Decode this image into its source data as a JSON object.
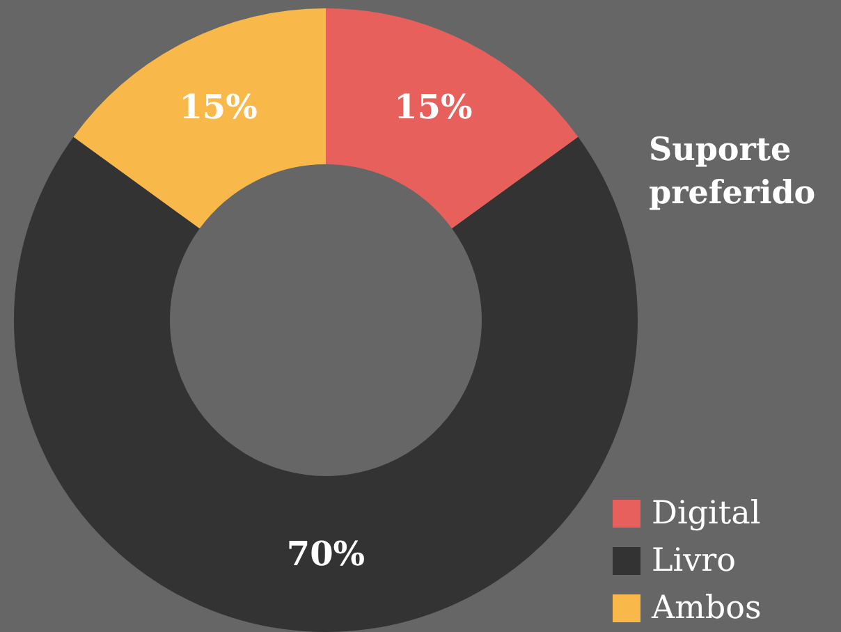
{
  "chart_data": {
    "type": "donut",
    "title": "Suporte preferido",
    "categories": [
      "Digital",
      "Livro",
      "Ambos"
    ],
    "values": [
      15,
      70,
      15
    ],
    "colors": [
      "#e8605c",
      "#333333",
      "#f8b84a"
    ],
    "value_labels": [
      "15%",
      "70%",
      "15%"
    ],
    "legend": "bottom right"
  }
}
